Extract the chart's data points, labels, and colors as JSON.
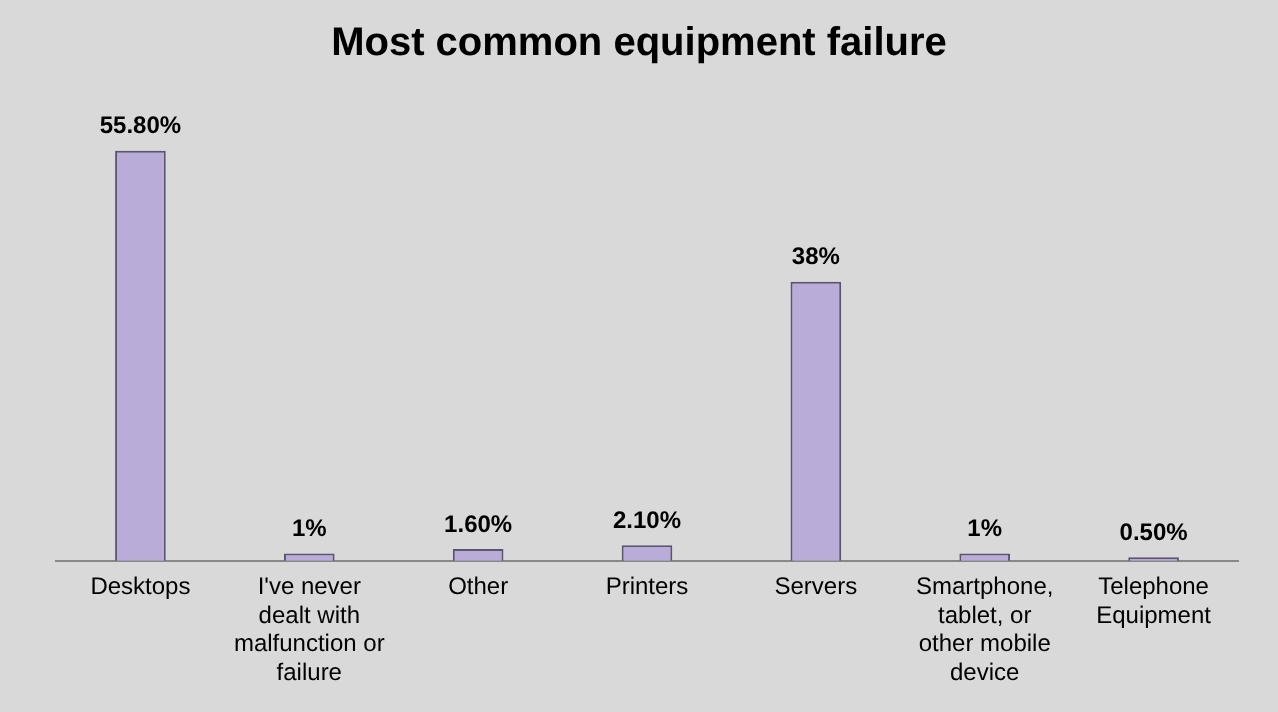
{
  "chart_data": {
    "type": "bar",
    "title": "Most common equipment failure",
    "categories": [
      "Desktops",
      "I've never dealt with malfunction or failure",
      "Other",
      "Printers",
      "Servers",
      "Smartphone, tablet, or other mobile device",
      "Telephone Equipment"
    ],
    "values": [
      55.8,
      1,
      1.6,
      2.1,
      38,
      1,
      0.5
    ],
    "value_labels": [
      "55.80%",
      "1%",
      "1.60%",
      "2.10%",
      "38%",
      "1%",
      "0.50%"
    ],
    "color": "#b9acd8",
    "grid": false,
    "legend": false
  }
}
